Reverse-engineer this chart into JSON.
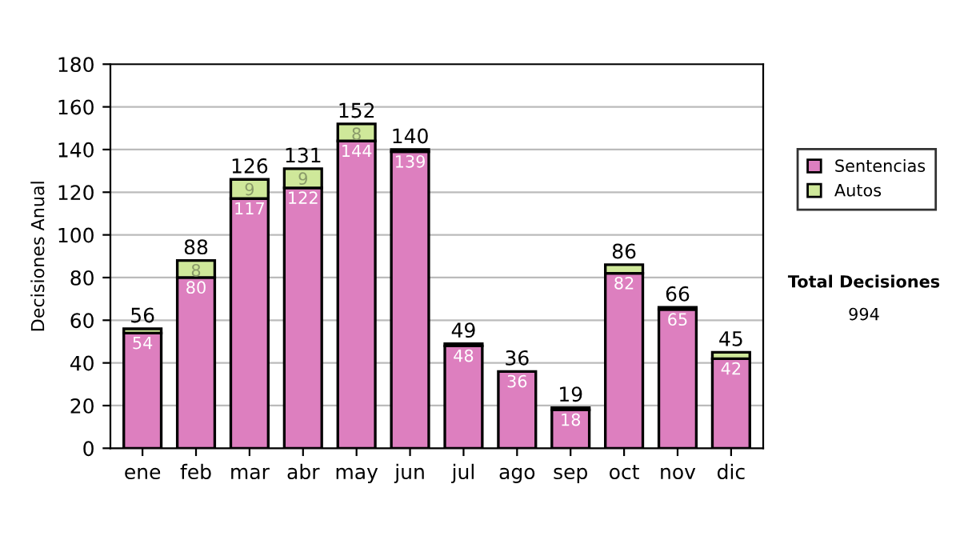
{
  "chart_data": {
    "type": "bar",
    "stacked": true,
    "ylabel": "Decisiones Anual",
    "categories": [
      "ene",
      "feb",
      "mar",
      "abr",
      "may",
      "jun",
      "jul",
      "ago",
      "sep",
      "oct",
      "nov",
      "dic"
    ],
    "series": [
      {
        "name": "Sentencias",
        "color": "#dd7fbf",
        "values": [
          54,
          80,
          117,
          122,
          144,
          139,
          48,
          36,
          18,
          82,
          65,
          42
        ],
        "value_labels": [
          "54",
          "80",
          "117",
          "122",
          "144",
          "139",
          "48",
          "36",
          "18",
          "82",
          "65",
          "42"
        ]
      },
      {
        "name": "Autos",
        "color": "#cfe89a",
        "values": [
          2,
          8,
          9,
          9,
          8,
          1,
          1,
          null,
          1,
          4,
          1,
          3
        ],
        "value_labels": [
          null,
          "8",
          "9",
          "9",
          "8",
          null,
          null,
          null,
          null,
          null,
          null,
          null
        ]
      }
    ],
    "totals": [
      "56",
      "88",
      "126",
      "131",
      "152",
      "140",
      "49",
      "36",
      "19",
      "86",
      "66",
      "45"
    ],
    "ylim": [
      0,
      180
    ],
    "yticks": [
      0,
      20,
      40,
      60,
      80,
      100,
      120,
      140,
      160,
      180
    ],
    "grid": "y",
    "legend": "right",
    "annotations": [
      "Total Decisiones",
      "994"
    ]
  }
}
